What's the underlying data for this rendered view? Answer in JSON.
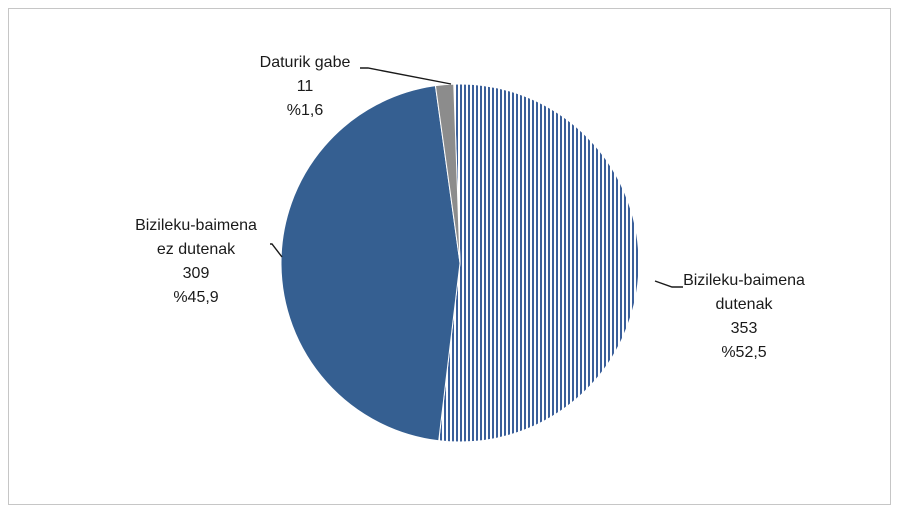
{
  "chart_data": {
    "type": "pie",
    "title": "",
    "slices": [
      {
        "label_lines": [
          "Bizileku-baimena",
          "dutenak"
        ],
        "value": 353,
        "percent_text": "%52,5",
        "fill": "striped",
        "colors": [
          "#3a5f9a",
          "#ffffff"
        ]
      },
      {
        "label_lines": [
          "Bizileku-baimena",
          "ez dutenak"
        ],
        "value": 309,
        "percent_text": "%45,9",
        "fill": "solid",
        "colors": [
          "#355f91"
        ]
      },
      {
        "label_lines": [
          "Daturik gabe"
        ],
        "value": 11,
        "percent_text": "%1,6",
        "fill": "solid",
        "colors": [
          "#8c8c8c"
        ]
      }
    ]
  }
}
